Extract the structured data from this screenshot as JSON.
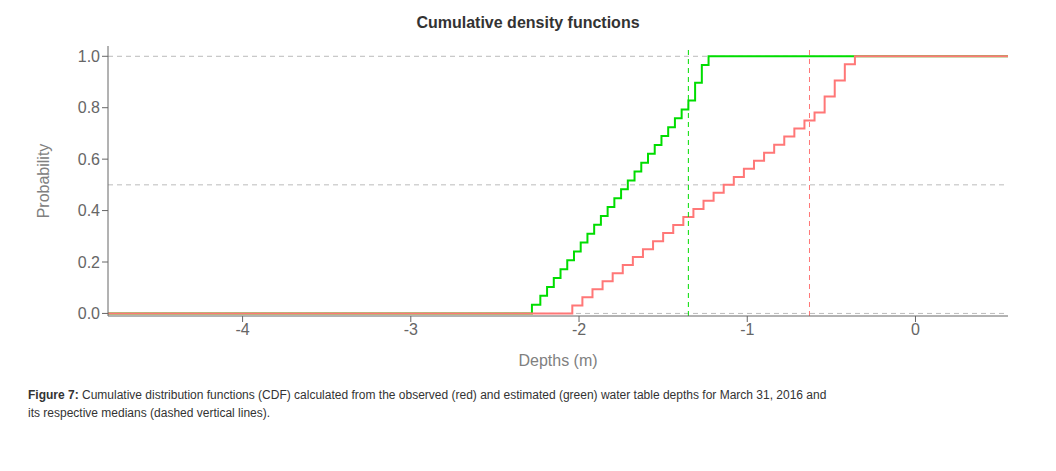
{
  "chart_data": {
    "type": "line",
    "title": "Cumulative density functions",
    "xlabel": "Depths (m)",
    "ylabel": "Probability",
    "xlim": [
      -4.8,
      0.55
    ],
    "ylim": [
      -0.01,
      1.04
    ],
    "xticks": [
      -4,
      -3,
      -2,
      -1,
      0
    ],
    "yticks": [
      {
        "value": 0.0,
        "label": "0.0"
      },
      0.2,
      0.4,
      0.6,
      0.8,
      {
        "value": 1.0,
        "label": "1.0"
      }
    ],
    "grid": false,
    "reference_lines": {
      "y": [
        0.0,
        0.5,
        1.0
      ],
      "color": "#bbbbbb",
      "line_style": "dashed"
    },
    "series": [
      {
        "type": "step",
        "color": "#00dd00",
        "median": -1.35,
        "x": [
          -4.8,
          -2.32,
          -2.28,
          -2.23,
          -2.19,
          -2.15,
          -2.11,
          -2.07,
          -2.03,
          -1.99,
          -1.95,
          -1.91,
          -1.87,
          -1.83,
          -1.79,
          -1.75,
          -1.71,
          -1.67,
          -1.63,
          -1.59,
          -1.55,
          -1.51,
          -1.47,
          -1.43,
          -1.39,
          -1.35,
          -1.31,
          -1.27,
          -1.23,
          -1.22,
          0.55
        ],
        "values": [
          0.0,
          0.0,
          0.034,
          0.069,
          0.103,
          0.138,
          0.172,
          0.207,
          0.241,
          0.276,
          0.31,
          0.345,
          0.379,
          0.414,
          0.448,
          0.483,
          0.517,
          0.552,
          0.586,
          0.621,
          0.655,
          0.69,
          0.724,
          0.759,
          0.793,
          0.828,
          0.897,
          0.966,
          1.0,
          1.0,
          1.0
        ]
      },
      {
        "type": "step",
        "color": "#ff7777",
        "median": -0.63,
        "x": [
          -4.8,
          -2.1,
          -2.04,
          -1.98,
          -1.92,
          -1.86,
          -1.8,
          -1.74,
          -1.68,
          -1.62,
          -1.56,
          -1.5,
          -1.44,
          -1.38,
          -1.32,
          -1.26,
          -1.2,
          -1.14,
          -1.08,
          -1.02,
          -0.96,
          -0.9,
          -0.84,
          -0.78,
          -0.72,
          -0.66,
          -0.6,
          -0.54,
          -0.48,
          -0.42,
          -0.36,
          -0.3,
          -0.3,
          0.55
        ],
        "values": [
          0.0,
          0.0,
          0.031,
          0.063,
          0.094,
          0.125,
          0.156,
          0.188,
          0.219,
          0.25,
          0.281,
          0.313,
          0.344,
          0.375,
          0.406,
          0.438,
          0.469,
          0.5,
          0.531,
          0.563,
          0.594,
          0.625,
          0.656,
          0.688,
          0.719,
          0.75,
          0.781,
          0.844,
          0.906,
          0.969,
          1.0,
          1.0,
          1.0,
          1.0
        ]
      }
    ],
    "caption": {
      "bold": "Figure 7: ",
      "lines": [
        "Cumulative distribution functions (CDF) calculated from the observed (red) and estimated (green) water table depths for March 31, 2016 and",
        "its respective medians (dashed vertical lines)."
      ]
    }
  }
}
